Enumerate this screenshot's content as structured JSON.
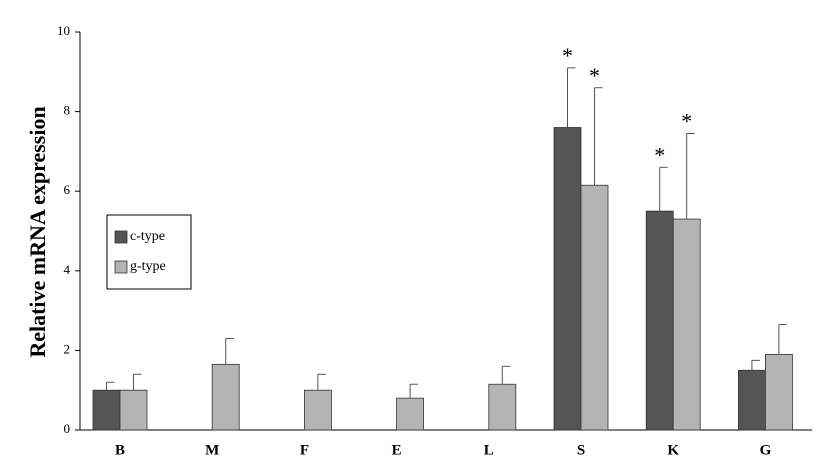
{
  "chart_data": {
    "type": "bar",
    "ylabel": "Relative mRNA expression",
    "categories": [
      "B",
      "M",
      "F",
      "E",
      "L",
      "S",
      "K",
      "G"
    ],
    "series": [
      {
        "name": "c-type",
        "color": "#555555",
        "values": [
          1.0,
          null,
          null,
          null,
          null,
          7.6,
          5.5,
          1.5
        ],
        "errors": [
          0.2,
          null,
          null,
          null,
          null,
          1.5,
          1.1,
          0.25
        ],
        "annotations": [
          null,
          null,
          null,
          null,
          null,
          "*",
          "*",
          null
        ]
      },
      {
        "name": "g-type",
        "color": "#b4b4b4",
        "values": [
          1.0,
          1.65,
          1.0,
          0.8,
          1.15,
          6.15,
          5.3,
          1.9
        ],
        "errors": [
          0.4,
          0.65,
          0.4,
          0.35,
          0.45,
          2.45,
          2.15,
          0.75
        ],
        "annotations": [
          null,
          null,
          null,
          null,
          null,
          "*",
          "*",
          null
        ]
      }
    ],
    "ylim": [
      0,
      10
    ],
    "yticks": [
      0,
      2,
      4,
      6,
      8,
      10
    ],
    "legend": "left"
  }
}
